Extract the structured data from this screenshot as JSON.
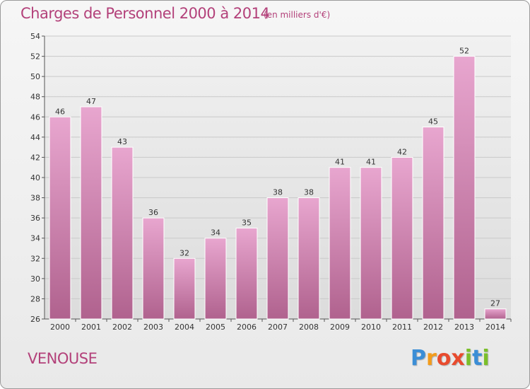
{
  "header": {
    "title": "Charges de Personnel 2000 à 2014",
    "subtitle": "(en milliers d'€)"
  },
  "footer": {
    "commune": "VENOUSE",
    "logo_letters": [
      "P",
      "r",
      "o",
      "x",
      "i",
      "t",
      "i"
    ],
    "logo_colors": [
      "#3b8ed6",
      "#f39c1b",
      "#e84b2e",
      "#e84b2e",
      "#7bbf2a",
      "#3b8ed6",
      "#7bbf2a"
    ]
  },
  "chart_data": {
    "type": "bar",
    "title": "Charges de Personnel 2000 à 2014",
    "subtitle": "(en milliers d'€)",
    "xlabel": "",
    "ylabel": "",
    "categories": [
      "2000",
      "2001",
      "2002",
      "2003",
      "2004",
      "2005",
      "2006",
      "2007",
      "2008",
      "2009",
      "2010",
      "2011",
      "2012",
      "2013",
      "2014"
    ],
    "values": [
      46,
      47,
      43,
      36,
      32,
      34,
      35,
      38,
      38,
      41,
      41,
      42,
      45,
      52,
      27
    ],
    "ylim": [
      26,
      54
    ],
    "yticks": [
      26,
      28,
      30,
      32,
      34,
      36,
      38,
      40,
      42,
      44,
      46,
      48,
      50,
      52,
      54
    ],
    "grid": true,
    "legend": "none",
    "bar_color_top": "#e8a6cf",
    "bar_color_bottom": "#b0628e"
  }
}
